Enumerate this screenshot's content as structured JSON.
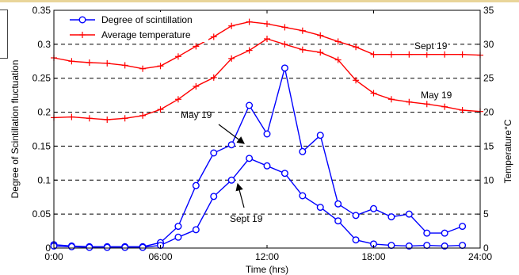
{
  "chart_data": {
    "type": "line",
    "xlabel": "Time (hrs)",
    "ylabel_left": "Degree of Scintillation fluctuation",
    "ylabel_right": "Temperature°C",
    "xlim": [
      0,
      24
    ],
    "ylim_left": [
      0,
      0.35
    ],
    "ylim_right": [
      0,
      35
    ],
    "x_ticks": [
      0,
      6,
      12,
      18,
      24
    ],
    "x_tick_labels": [
      "0:00",
      "06:00",
      "12:00",
      "18:00",
      "24:00"
    ],
    "y_left_ticks": [
      0,
      0.05,
      0.1,
      0.15,
      0.2,
      0.25,
      0.3,
      0.35
    ],
    "y_left_tick_labels": [
      "0",
      "0.05",
      "0.1",
      "0.15",
      "0.2",
      "0.25",
      "0.3",
      "0.35"
    ],
    "y_right_ticks": [
      0,
      5,
      10,
      15,
      20,
      25,
      30,
      35
    ],
    "y_right_tick_labels": [
      "0",
      "5",
      "10",
      "15",
      "20",
      "25",
      "30",
      "35"
    ],
    "grid": "horizontal dashed",
    "legend_position": "top-left",
    "legend": [
      {
        "label": "Degree of scintillation",
        "color": "#0000ff",
        "marker": "circle"
      },
      {
        "label": "Average temperature",
        "color": "#ff0000",
        "marker": "plus"
      }
    ],
    "annotations": [
      {
        "text": "May 19"
      },
      {
        "text": "Sept 19"
      },
      {
        "text": "Sept 19"
      },
      {
        "text": "May 19"
      }
    ],
    "series": [
      {
        "axis": "left",
        "color": "#0000ff",
        "marker": "circle",
        "x": [
          0,
          1,
          2,
          3,
          4,
          5,
          6,
          7,
          8,
          9,
          10,
          11,
          12,
          13,
          14,
          15,
          16,
          17,
          18,
          19,
          20,
          21,
          22,
          23
        ],
        "values": [
          0.005,
          0.003,
          0.002,
          0.002,
          0.002,
          0.002,
          0.008,
          0.032,
          0.092,
          0.14,
          0.152,
          0.21,
          0.168,
          0.265,
          0.142,
          0.166,
          0.065,
          0.048,
          0.058,
          0.046,
          0.05,
          0.022,
          0.022,
          0.032
        ]
      },
      {
        "axis": "left",
        "color": "#0000ff",
        "marker": "circle",
        "x": [
          0,
          1,
          2,
          3,
          4,
          5,
          6,
          7,
          8,
          9,
          10,
          11,
          12,
          13,
          14,
          15,
          16,
          17,
          18,
          19,
          20,
          21,
          22,
          23
        ],
        "values": [
          0.003,
          0.002,
          0.001,
          0.001,
          0.001,
          0.001,
          0.004,
          0.016,
          0.027,
          0.076,
          0.1,
          0.132,
          0.121,
          0.11,
          0.077,
          0.06,
          0.04,
          0.012,
          0.006,
          0.004,
          0.003,
          0.004,
          0.003,
          0.004
        ]
      },
      {
        "axis": "right",
        "color": "#ff0000",
        "marker": "plus",
        "x": [
          0,
          1,
          2,
          3,
          4,
          5,
          6,
          7,
          8,
          9,
          10,
          11,
          12,
          13,
          14,
          15,
          16,
          17,
          18,
          19,
          20,
          21,
          22,
          23,
          24
        ],
        "values": [
          28,
          27.5,
          27.3,
          27.2,
          26.9,
          26.4,
          26.8,
          28.2,
          29.7,
          31.1,
          32.7,
          33.3,
          33,
          32.5,
          32,
          31.3,
          30.4,
          29.6,
          28.5,
          28.5,
          28.5,
          28.5,
          28.5,
          28.5,
          28.4
        ]
      },
      {
        "axis": "right",
        "color": "#ff0000",
        "marker": "plus",
        "x": [
          0,
          1,
          2,
          3,
          4,
          5,
          6,
          7,
          8,
          9,
          10,
          11,
          12,
          13,
          14,
          15,
          16,
          17,
          18,
          19,
          20,
          21,
          22,
          23,
          24
        ],
        "values": [
          19.2,
          19.3,
          19.1,
          18.9,
          19.1,
          19.5,
          20.4,
          21.9,
          23.8,
          25.1,
          27.9,
          29.1,
          30.8,
          30,
          29.2,
          28.8,
          27.7,
          24.7,
          22.8,
          21.9,
          21.5,
          21.2,
          20.8,
          20.3,
          20.1
        ]
      }
    ]
  }
}
